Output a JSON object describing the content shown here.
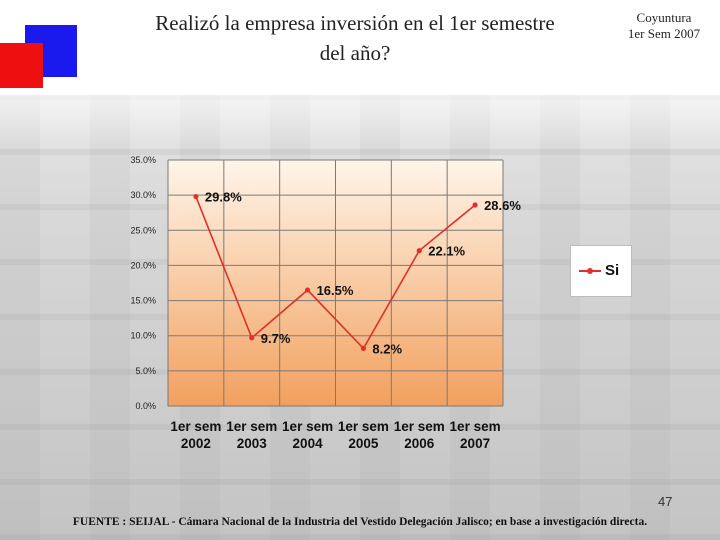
{
  "header": {
    "title_line1": "Realizó la empresa inversión en el 1er semestre",
    "title_line2": "del año?",
    "corner_line1": "Coyuntura",
    "corner_line2": "1er Sem 2007"
  },
  "footer": {
    "page_number": "47",
    "source": "FUENTE :  SEIJAL - Cámara Nacional de la Industria del Vestido Delegación Jalisco;  en base a investigación directa."
  },
  "colors": {
    "series": "#e0302a",
    "plot_top": "#fff5e9",
    "plot_bottom": "#f2a05e",
    "grid": "#7a7a7a"
  },
  "chart_data": {
    "type": "line",
    "categories": [
      [
        "1er sem",
        "2002"
      ],
      [
        "1er sem",
        "2003"
      ],
      [
        "1er sem",
        "2004"
      ],
      [
        "1er sem",
        "2005"
      ],
      [
        "1er sem",
        "2006"
      ],
      [
        "1er sem",
        "2007"
      ]
    ],
    "series": [
      {
        "name": "Si",
        "values": [
          29.8,
          9.7,
          16.5,
          8.2,
          22.1,
          28.6
        ],
        "labels": [
          "29.8%",
          "9.7%",
          "16.5%",
          "8.2%",
          "22.1%",
          "28.6%"
        ]
      }
    ],
    "y_ticks": [
      "0.0%",
      "5.0%",
      "10.0%",
      "15.0%",
      "20.0%",
      "25.0%",
      "30.0%",
      "35.0%"
    ],
    "ylim": [
      0,
      35
    ],
    "grid": true,
    "legend": "right"
  }
}
